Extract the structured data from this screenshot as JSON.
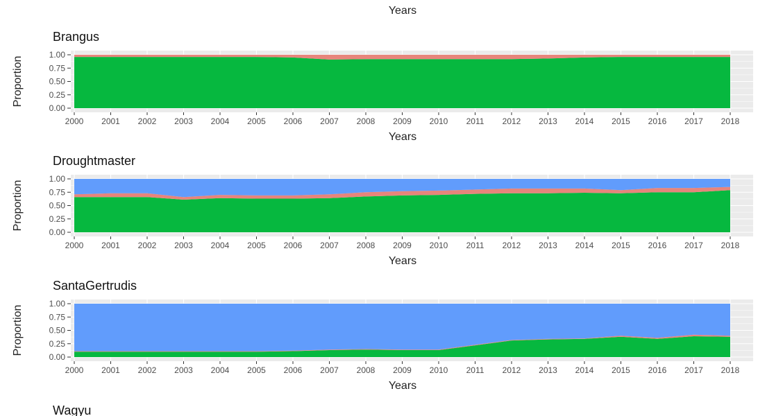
{
  "top_axis_label": "Years",
  "partial_next_title": "Wagyu",
  "series_colors": {
    "salmon": "#e7857b",
    "green": "#06b83f",
    "blue": "#619cfc"
  },
  "chart_data": [
    {
      "type": "area",
      "title": "Brangus",
      "xlabel": "Years",
      "ylabel": "Proportion",
      "ylim": [
        0,
        1
      ],
      "y_ticks": [
        "0.00",
        "0.25",
        "0.50",
        "0.75",
        "1.00"
      ],
      "grid": true,
      "x": [
        2000,
        2001,
        2002,
        2003,
        2004,
        2005,
        2006,
        2007,
        2008,
        2009,
        2010,
        2011,
        2012,
        2013,
        2014,
        2015,
        2016,
        2017,
        2018
      ],
      "stack_order_bottom_to_top": [
        "green",
        "salmon",
        "blue"
      ],
      "series": [
        {
          "color": "#06b83f",
          "values": [
            0.96,
            0.96,
            0.96,
            0.96,
            0.96,
            0.96,
            0.95,
            0.91,
            0.92,
            0.92,
            0.92,
            0.92,
            0.92,
            0.93,
            0.95,
            0.96,
            0.96,
            0.96,
            0.96
          ]
        },
        {
          "color": "#e7857b",
          "values": [
            0.04,
            0.04,
            0.04,
            0.04,
            0.04,
            0.04,
            0.05,
            0.09,
            0.08,
            0.08,
            0.08,
            0.08,
            0.08,
            0.07,
            0.05,
            0.04,
            0.04,
            0.04,
            0.04
          ]
        },
        {
          "color": "#619cfc",
          "values": [
            0,
            0,
            0,
            0,
            0,
            0,
            0,
            0,
            0,
            0,
            0,
            0,
            0,
            0,
            0,
            0,
            0,
            0,
            0
          ]
        }
      ]
    },
    {
      "type": "area",
      "title": "Droughtmaster",
      "xlabel": "Years",
      "ylabel": "Proportion",
      "ylim": [
        0,
        1
      ],
      "y_ticks": [
        "0.00",
        "0.25",
        "0.50",
        "0.75",
        "1.00"
      ],
      "grid": true,
      "x": [
        2000,
        2001,
        2002,
        2003,
        2004,
        2005,
        2006,
        2007,
        2008,
        2009,
        2010,
        2011,
        2012,
        2013,
        2014,
        2015,
        2016,
        2017,
        2018
      ],
      "stack_order_bottom_to_top": [
        "green",
        "salmon",
        "blue"
      ],
      "series": [
        {
          "color": "#06b83f",
          "values": [
            0.66,
            0.66,
            0.66,
            0.61,
            0.64,
            0.63,
            0.63,
            0.64,
            0.67,
            0.69,
            0.7,
            0.72,
            0.73,
            0.73,
            0.74,
            0.73,
            0.75,
            0.75,
            0.79
          ]
        },
        {
          "color": "#e7857b",
          "values": [
            0.05,
            0.07,
            0.07,
            0.05,
            0.06,
            0.06,
            0.06,
            0.07,
            0.08,
            0.08,
            0.08,
            0.08,
            0.09,
            0.09,
            0.08,
            0.06,
            0.08,
            0.08,
            0.06
          ]
        },
        {
          "color": "#619cfc",
          "values": [
            0.29,
            0.27,
            0.27,
            0.34,
            0.3,
            0.31,
            0.31,
            0.29,
            0.25,
            0.23,
            0.22,
            0.2,
            0.18,
            0.18,
            0.18,
            0.21,
            0.17,
            0.17,
            0.15
          ]
        }
      ]
    },
    {
      "type": "area",
      "title": "SantaGertrudis",
      "xlabel": "Years",
      "ylabel": "Proportion",
      "ylim": [
        0,
        1
      ],
      "y_ticks": [
        "0.00",
        "0.25",
        "0.50",
        "0.75",
        "1.00"
      ],
      "grid": true,
      "x": [
        2000,
        2001,
        2002,
        2003,
        2004,
        2005,
        2006,
        2007,
        2008,
        2009,
        2010,
        2011,
        2012,
        2013,
        2014,
        2015,
        2016,
        2017,
        2018
      ],
      "stack_order_bottom_to_top": [
        "green",
        "salmon",
        "blue"
      ],
      "series": [
        {
          "color": "#06b83f",
          "values": [
            0.1,
            0.1,
            0.1,
            0.1,
            0.1,
            0.1,
            0.11,
            0.13,
            0.14,
            0.13,
            0.13,
            0.22,
            0.31,
            0.33,
            0.34,
            0.38,
            0.34,
            0.39,
            0.38
          ]
        },
        {
          "color": "#e7857b",
          "values": [
            0.01,
            0.01,
            0.01,
            0.01,
            0.01,
            0.01,
            0.01,
            0.01,
            0.01,
            0.01,
            0.01,
            0.01,
            0.01,
            0.01,
            0.01,
            0.02,
            0.02,
            0.03,
            0.02
          ]
        },
        {
          "color": "#619cfc",
          "values": [
            0.89,
            0.89,
            0.89,
            0.89,
            0.89,
            0.89,
            0.88,
            0.86,
            0.85,
            0.86,
            0.86,
            0.77,
            0.68,
            0.66,
            0.65,
            0.6,
            0.64,
            0.58,
            0.6
          ]
        }
      ]
    }
  ]
}
